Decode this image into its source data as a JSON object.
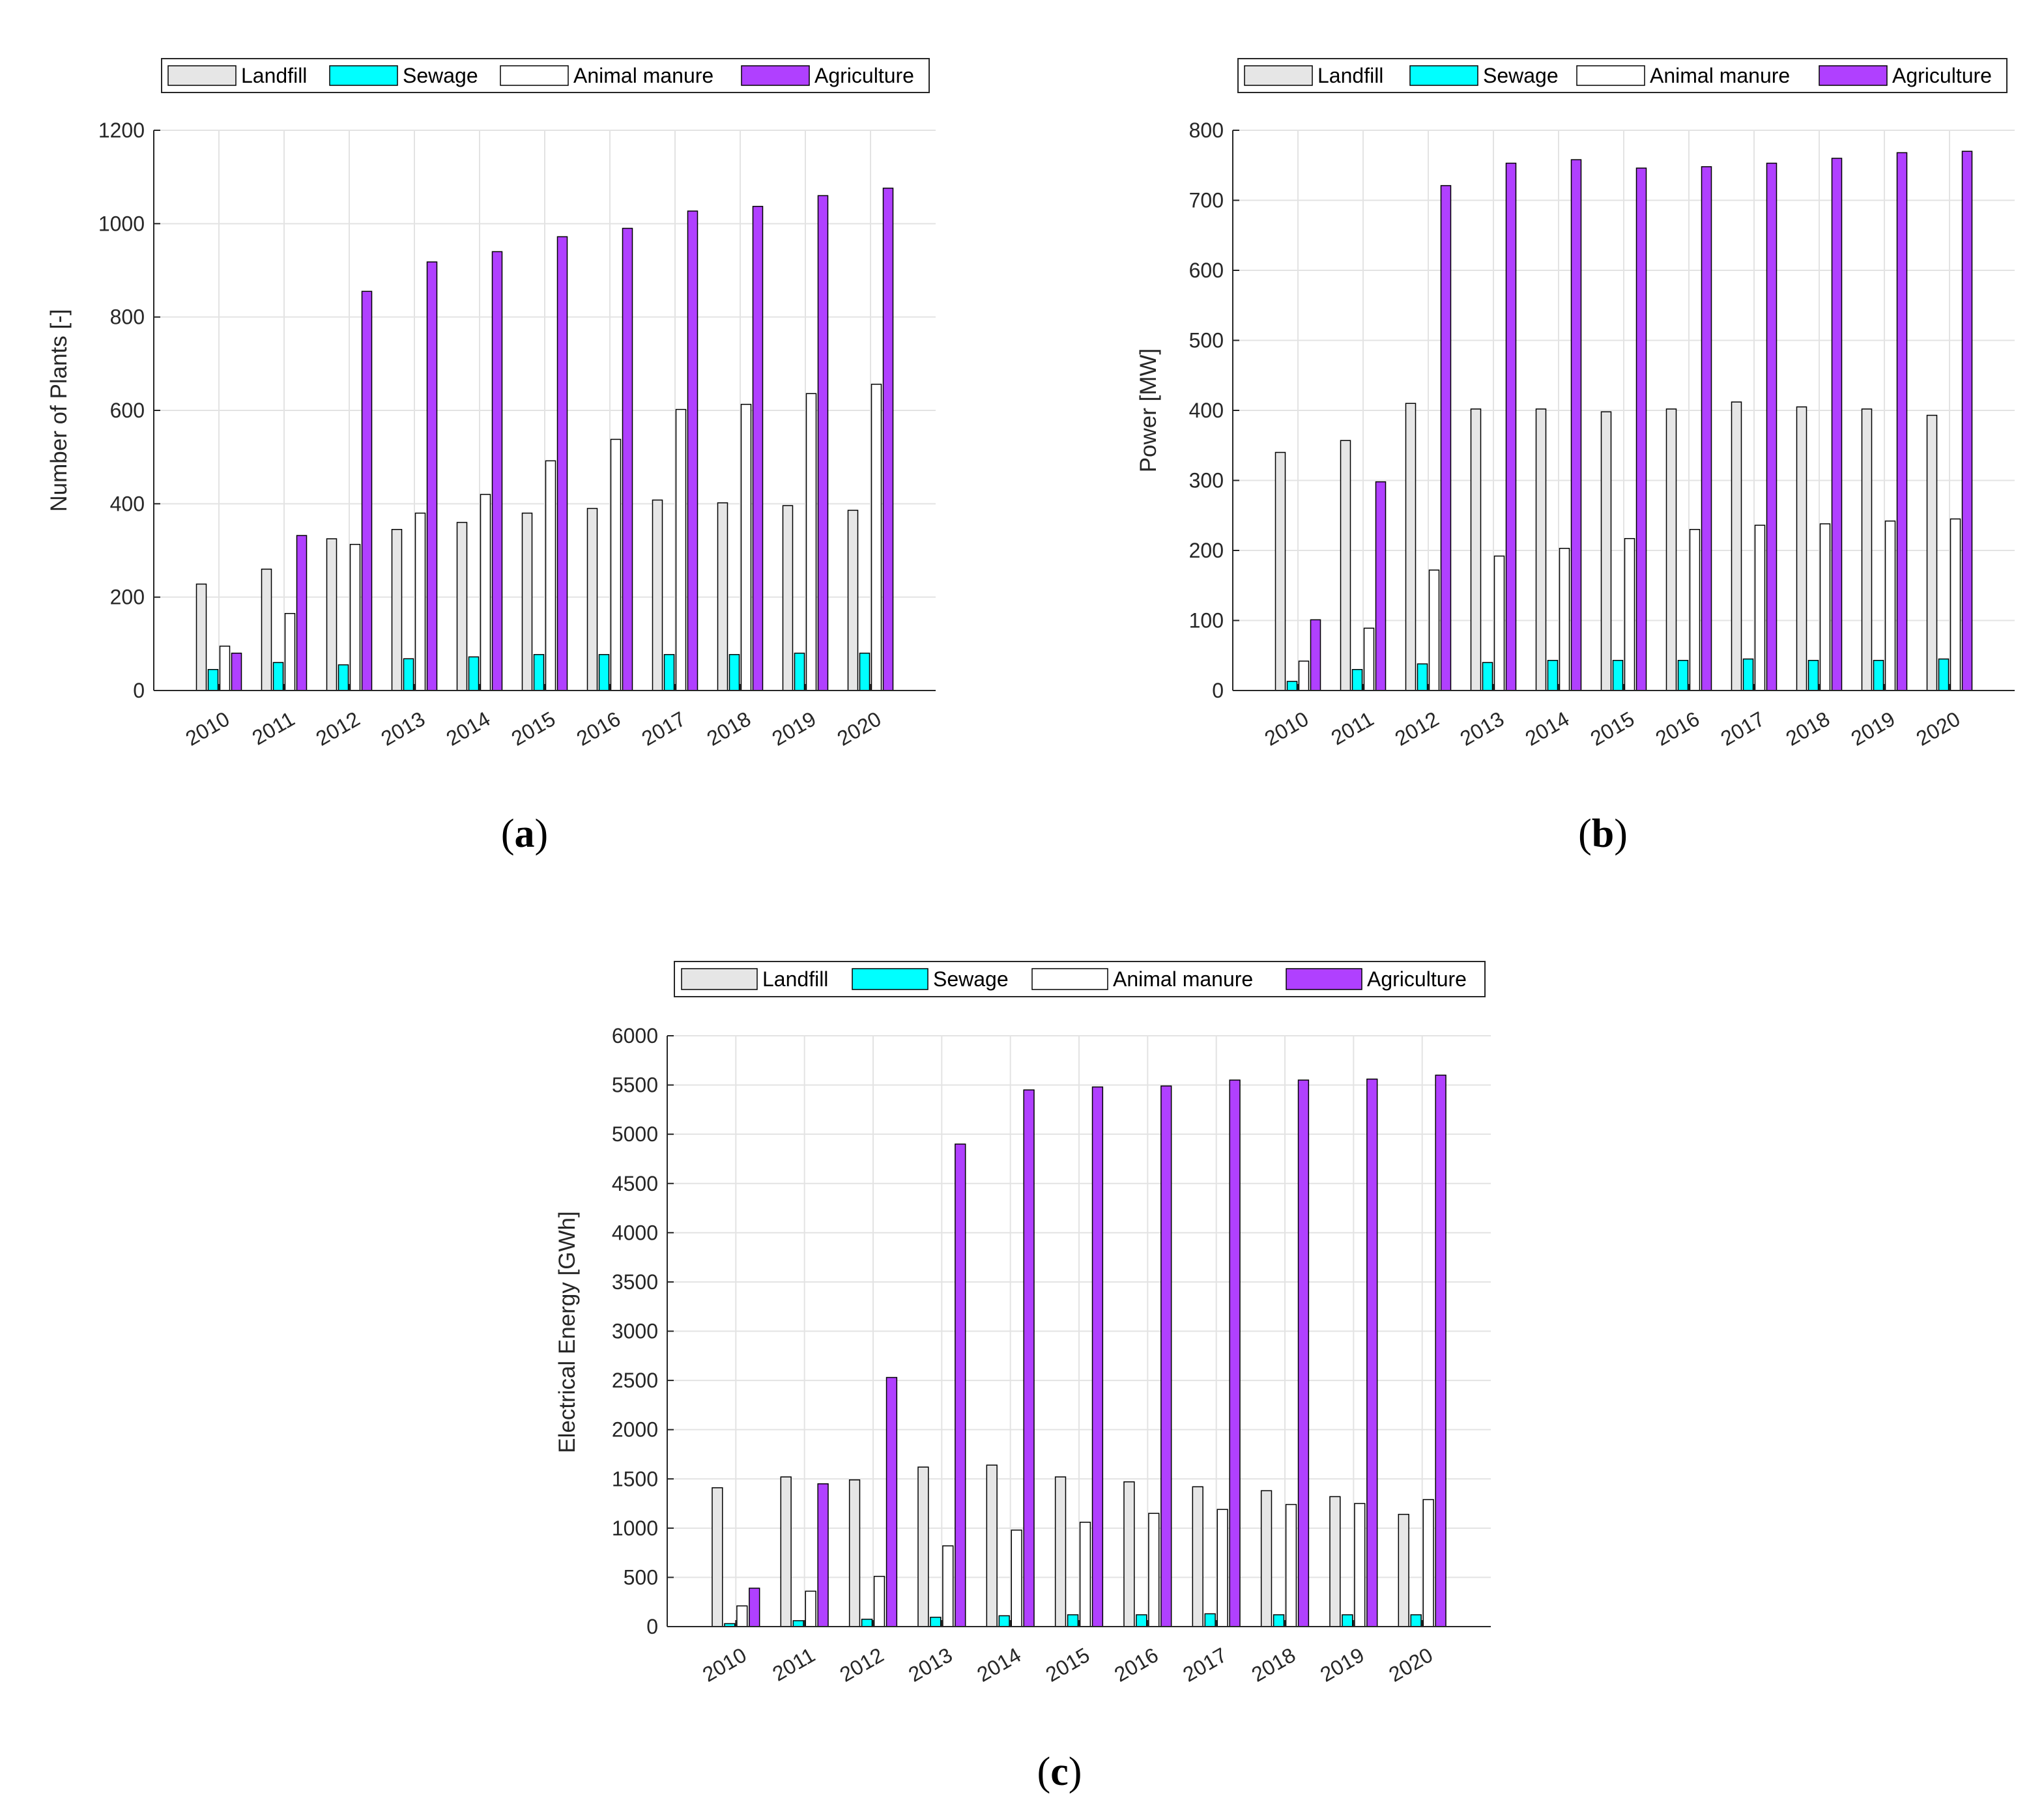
{
  "colors": {
    "Landfill": "#e6e6e6",
    "Sewage": "#00ffff",
    "Animal manure": "#ffffff",
    "Agriculture": "#b040ff",
    "grid": "#e3e3e3",
    "axis": "#262626"
  },
  "chart_data": [
    {
      "id": "a",
      "type": "bar",
      "panel_label": "a",
      "title": "",
      "xlabel": "",
      "ylabel": "Number of Plants [-]",
      "categories": [
        "2010",
        "2011",
        "2012",
        "2013",
        "2014",
        "2015",
        "2016",
        "2017",
        "2018",
        "2019",
        "2020"
      ],
      "ylim": [
        0,
        1200
      ],
      "yticks": [
        0,
        200,
        400,
        600,
        800,
        1000,
        1200
      ],
      "yticklabels": [
        "0",
        "200",
        "400",
        "600",
        "800",
        "1000",
        "1200"
      ],
      "legend": [
        "Landfill",
        "Sewage",
        "Animal manure",
        "Agriculture"
      ],
      "series": [
        {
          "name": "Landfill",
          "values": [
            228,
            260,
            325,
            345,
            360,
            380,
            390,
            408,
            402,
            396,
            386
          ]
        },
        {
          "name": "Sewage",
          "values": [
            45,
            60,
            55,
            68,
            72,
            77,
            77,
            77,
            77,
            80,
            80
          ]
        },
        {
          "name": "Animal manure",
          "values": [
            95,
            165,
            313,
            380,
            420,
            492,
            538,
            602,
            613,
            636,
            656
          ]
        },
        {
          "name": "Agriculture",
          "values": [
            80,
            332,
            855,
            918,
            940,
            972,
            990,
            1027,
            1037,
            1060,
            1076
          ]
        }
      ]
    },
    {
      "id": "b",
      "type": "bar",
      "panel_label": "b",
      "title": "",
      "xlabel": "",
      "ylabel": "Power [MW]",
      "categories": [
        "2010",
        "2011",
        "2012",
        "2013",
        "2014",
        "2015",
        "2016",
        "2017",
        "2018",
        "2019",
        "2020"
      ],
      "ylim": [
        0,
        800
      ],
      "yticks": [
        0,
        100,
        200,
        300,
        400,
        500,
        600,
        700,
        800
      ],
      "yticklabels": [
        "0",
        "100",
        "200",
        "300",
        "400",
        "500",
        "600",
        "700",
        "800"
      ],
      "legend": [
        "Landfill",
        "Sewage",
        "Animal manure",
        "Agriculture"
      ],
      "series": [
        {
          "name": "Landfill",
          "values": [
            340,
            357,
            410,
            402,
            402,
            398,
            402,
            412,
            405,
            402,
            393
          ]
        },
        {
          "name": "Sewage",
          "values": [
            13,
            30,
            38,
            40,
            43,
            43,
            43,
            45,
            43,
            43,
            45
          ]
        },
        {
          "name": "Animal manure",
          "values": [
            42,
            89,
            172,
            192,
            203,
            217,
            230,
            236,
            238,
            242,
            245
          ]
        },
        {
          "name": "Agriculture",
          "values": [
            101,
            298,
            721,
            753,
            758,
            746,
            748,
            753,
            760,
            768,
            770
          ]
        }
      ]
    },
    {
      "id": "c",
      "type": "bar",
      "panel_label": "c",
      "title": "",
      "xlabel": "",
      "ylabel": "Electrical Energy [GWh]",
      "categories": [
        "2010",
        "2011",
        "2012",
        "2013",
        "2014",
        "2015",
        "2016",
        "2017",
        "2018",
        "2019",
        "2020"
      ],
      "ylim": [
        0,
        6000
      ],
      "yticks": [
        0,
        500,
        1000,
        1500,
        2000,
        2500,
        3000,
        3500,
        4000,
        4500,
        5000,
        5500,
        6000
      ],
      "yticklabels": [
        "0",
        "500",
        "1000",
        "1500",
        "2000",
        "2500",
        "3000",
        "3500",
        "4000",
        "4500",
        "5000",
        "5500",
        "6000"
      ],
      "legend": [
        "Landfill",
        "Sewage",
        "Animal manure",
        "Agriculture"
      ],
      "series": [
        {
          "name": "Landfill",
          "values": [
            1410,
            1520,
            1490,
            1620,
            1640,
            1520,
            1470,
            1420,
            1380,
            1320,
            1140
          ]
        },
        {
          "name": "Sewage",
          "values": [
            30,
            60,
            75,
            95,
            110,
            120,
            120,
            130,
            120,
            120,
            120
          ]
        },
        {
          "name": "Animal manure",
          "values": [
            210,
            360,
            510,
            820,
            980,
            1060,
            1150,
            1190,
            1240,
            1250,
            1290
          ]
        },
        {
          "name": "Agriculture",
          "values": [
            390,
            1450,
            2530,
            4900,
            5450,
            5480,
            5490,
            5550,
            5550,
            5560,
            5600
          ]
        }
      ]
    }
  ]
}
